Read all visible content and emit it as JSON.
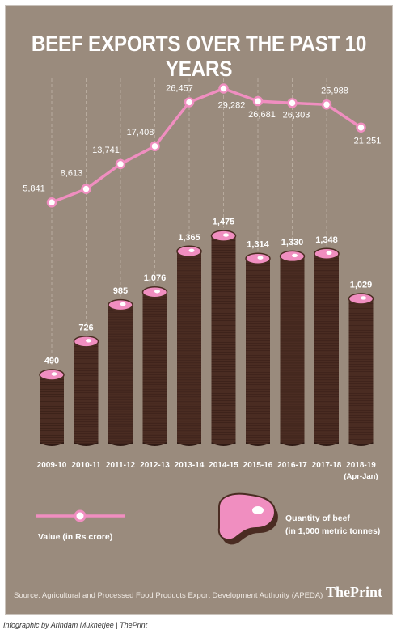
{
  "title": "BEEF EXPORTS OVER THE PAST 10 YEARS",
  "legend": {
    "line_label": "Value (in Rs crore)",
    "bar_label_1": "Quantity of beef",
    "bar_label_2": "(in 1,000 metric tonnes)"
  },
  "source": "Source: Agricultural and Processed Food Products Export Development Authority (APEDA)",
  "brand": "ThePrint",
  "credit": "Infographic by Arindam Mukherjee | ThePrint",
  "colors": {
    "background": "#9a8b7d",
    "bar": "#4a2c22",
    "accent": "#f08ec0",
    "text": "#ffffff"
  },
  "chart_data": {
    "type": "bar",
    "title": "BEEF EXPORTS OVER THE PAST 10 YEARS",
    "categories": [
      "2009-10",
      "2010-11",
      "2011-12",
      "2012-13",
      "2013-14",
      "2014-15",
      "2015-16",
      "2016-17",
      "2017-18",
      "2018-19"
    ],
    "category_notes": [
      "",
      "",
      "",
      "",
      "",
      "",
      "",
      "",
      "",
      "(Apr-Jan)"
    ],
    "series": [
      {
        "name": "Value (in Rs crore)",
        "type": "line",
        "values": [
          5841,
          8613,
          13741,
          17408,
          26457,
          29282,
          26681,
          26303,
          25988,
          21251
        ],
        "labels": [
          "5,841",
          "8,613",
          "13,741",
          "17,408",
          "26,457",
          "29,282",
          "26,681",
          "26,303",
          "25,988",
          "21,251"
        ]
      },
      {
        "name": "Quantity of beef (in 1,000 metric tonnes)",
        "type": "bar",
        "values": [
          490,
          726,
          985,
          1076,
          1365,
          1475,
          1314,
          1330,
          1348,
          1029
        ],
        "labels": [
          "490",
          "726",
          "985",
          "1,076",
          "1,365",
          "1,475",
          "1,314",
          "1,330",
          "1,348",
          "1,029"
        ]
      }
    ],
    "grid": false,
    "legend": "bottom"
  }
}
